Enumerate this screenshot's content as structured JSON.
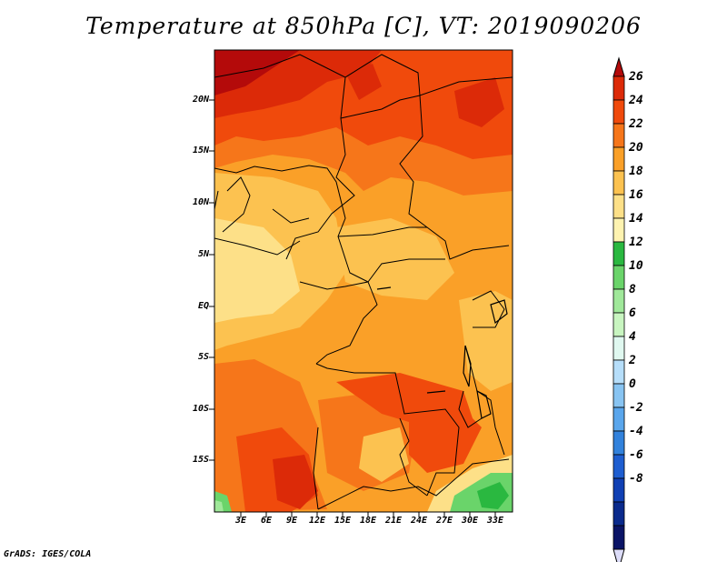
{
  "title": "Temperature at 850hPa [C], VT: 2019090206",
  "credit": "GrADS: IGES/COLA",
  "map": {
    "lat_labels": [
      "20N",
      "15N",
      "10N",
      "5N",
      "EQ",
      "5S",
      "10S",
      "15S"
    ],
    "lon_labels": [
      "3E",
      "6E",
      "9E",
      "12E",
      "15E",
      "18E",
      "21E",
      "24E",
      "27E",
      "30E",
      "33E"
    ]
  },
  "colorbar": {
    "labels": [
      "26",
      "24",
      "22",
      "20",
      "18",
      "16",
      "14",
      "12",
      "10",
      "8",
      "6",
      "4",
      "2",
      "0",
      "-2",
      "-4",
      "-6",
      "-8"
    ],
    "colors": [
      "#b40a0a",
      "#dc2a08",
      "#f04a0c",
      "#f6761a",
      "#faa028",
      "#fcc250",
      "#fde088",
      "#fef3b0",
      "#2ab840",
      "#6ad46a",
      "#a0e89a",
      "#c8f5c0",
      "#e0f8f0",
      "#b6defa",
      "#88c4f2",
      "#5aa6ec",
      "#3282dc",
      "#1e5ed0",
      "#1040b4",
      "#0a2a8c",
      "#0a1466",
      "#dcdcf8"
    ]
  }
}
